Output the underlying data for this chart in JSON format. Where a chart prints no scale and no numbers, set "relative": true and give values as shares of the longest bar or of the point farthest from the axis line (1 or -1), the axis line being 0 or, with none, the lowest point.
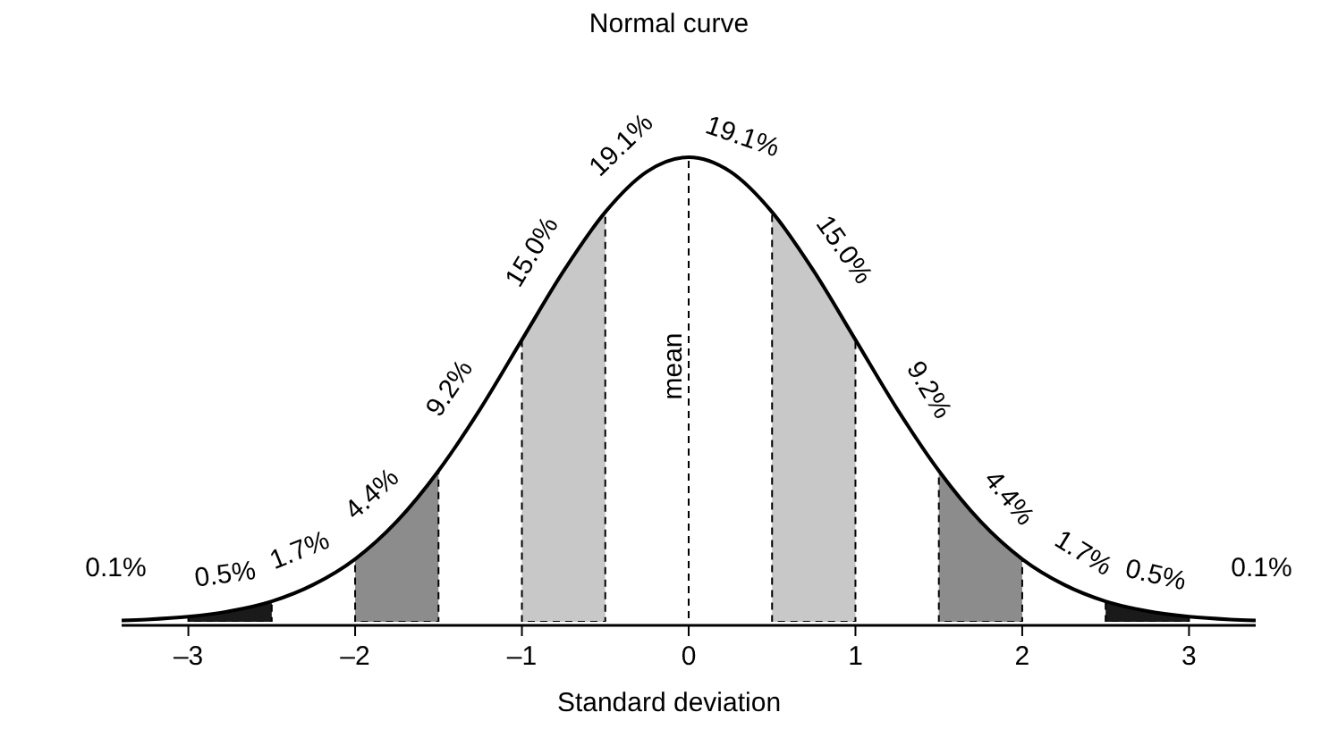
{
  "chart_data": {
    "type": "line",
    "title": "Normal curve",
    "xlabel": "Standard deviation",
    "relative": true,
    "x": [
      -3.4,
      -3.25,
      -3,
      -2.75,
      -2.5,
      -2.25,
      -2,
      -1.75,
      -1.5,
      -1.25,
      -1,
      -0.75,
      -0.5,
      -0.25,
      0,
      0.25,
      0.5,
      0.75,
      1,
      1.25,
      1.5,
      1.75,
      2,
      2.25,
      2.5,
      2.75,
      3,
      3.25,
      3.4
    ],
    "series": [
      {
        "color": "#000000",
        "values": [
          0.003,
          0.005,
          0.011,
          0.023,
          0.044,
          0.08,
          0.135,
          0.216,
          0.325,
          0.458,
          0.607,
          0.755,
          0.882,
          0.969,
          1,
          0.969,
          0.882,
          0.755,
          0.607,
          0.458,
          0.325,
          0.216,
          0.135,
          0.08,
          0.044,
          0.023,
          0.011,
          0.005,
          0.003
        ]
      }
    ],
    "marker": "none",
    "line_style": "solid",
    "xlim": [
      -3.4,
      3.4
    ],
    "xticks": [
      {
        "value": -3,
        "label": "–3"
      },
      {
        "value": -2,
        "label": "–2"
      },
      {
        "value": -1,
        "label": "–1"
      },
      0,
      1,
      2,
      3
    ],
    "bands": [
      {
        "axis": "x",
        "from": -3,
        "to": -2.5,
        "color": "#1a1a1a"
      },
      {
        "axis": "x",
        "from": -2,
        "to": -1.5,
        "color": "#8c8c8c"
      },
      {
        "axis": "x",
        "from": -1,
        "to": -0.5,
        "color": "#c8c8c8"
      },
      {
        "axis": "x",
        "from": 0.5,
        "to": 1,
        "color": "#c8c8c8"
      },
      {
        "axis": "x",
        "from": 1.5,
        "to": 2,
        "color": "#8c8c8c"
      },
      {
        "axis": "x",
        "from": 2.5,
        "to": 3,
        "color": "#1a1a1a"
      }
    ],
    "ref_lines": [
      {
        "axis": "x",
        "value": 0,
        "label": "mean",
        "line_style": "dashed"
      }
    ],
    "annotations": [
      {
        "text": "0.1%",
        "x": -3.3,
        "y": 0.005
      },
      {
        "text": "0.5%",
        "x": -2.75,
        "y": 0.023
      },
      {
        "text": "1.7%",
        "x": -2.25,
        "y": 0.08
      },
      {
        "text": "4.4%",
        "x": -1.75,
        "y": 0.216
      },
      {
        "text": "9.2%",
        "x": -1.25,
        "y": 0.458
      },
      {
        "text": "15.0%",
        "x": -0.75,
        "y": 0.755
      },
      {
        "text": "19.1%",
        "x": -0.25,
        "y": 0.969
      },
      {
        "text": "19.1%",
        "x": 0.25,
        "y": 0.969
      },
      {
        "text": "15.0%",
        "x": 0.75,
        "y": 0.755
      },
      {
        "text": "9.2%",
        "x": 1.25,
        "y": 0.458
      },
      {
        "text": "4.4%",
        "x": 1.75,
        "y": 0.216
      },
      {
        "text": "1.7%",
        "x": 2.25,
        "y": 0.08
      },
      {
        "text": "0.5%",
        "x": 2.75,
        "y": 0.023
      },
      {
        "text": "0.1%",
        "x": 3.3,
        "y": 0.005
      }
    ]
  }
}
